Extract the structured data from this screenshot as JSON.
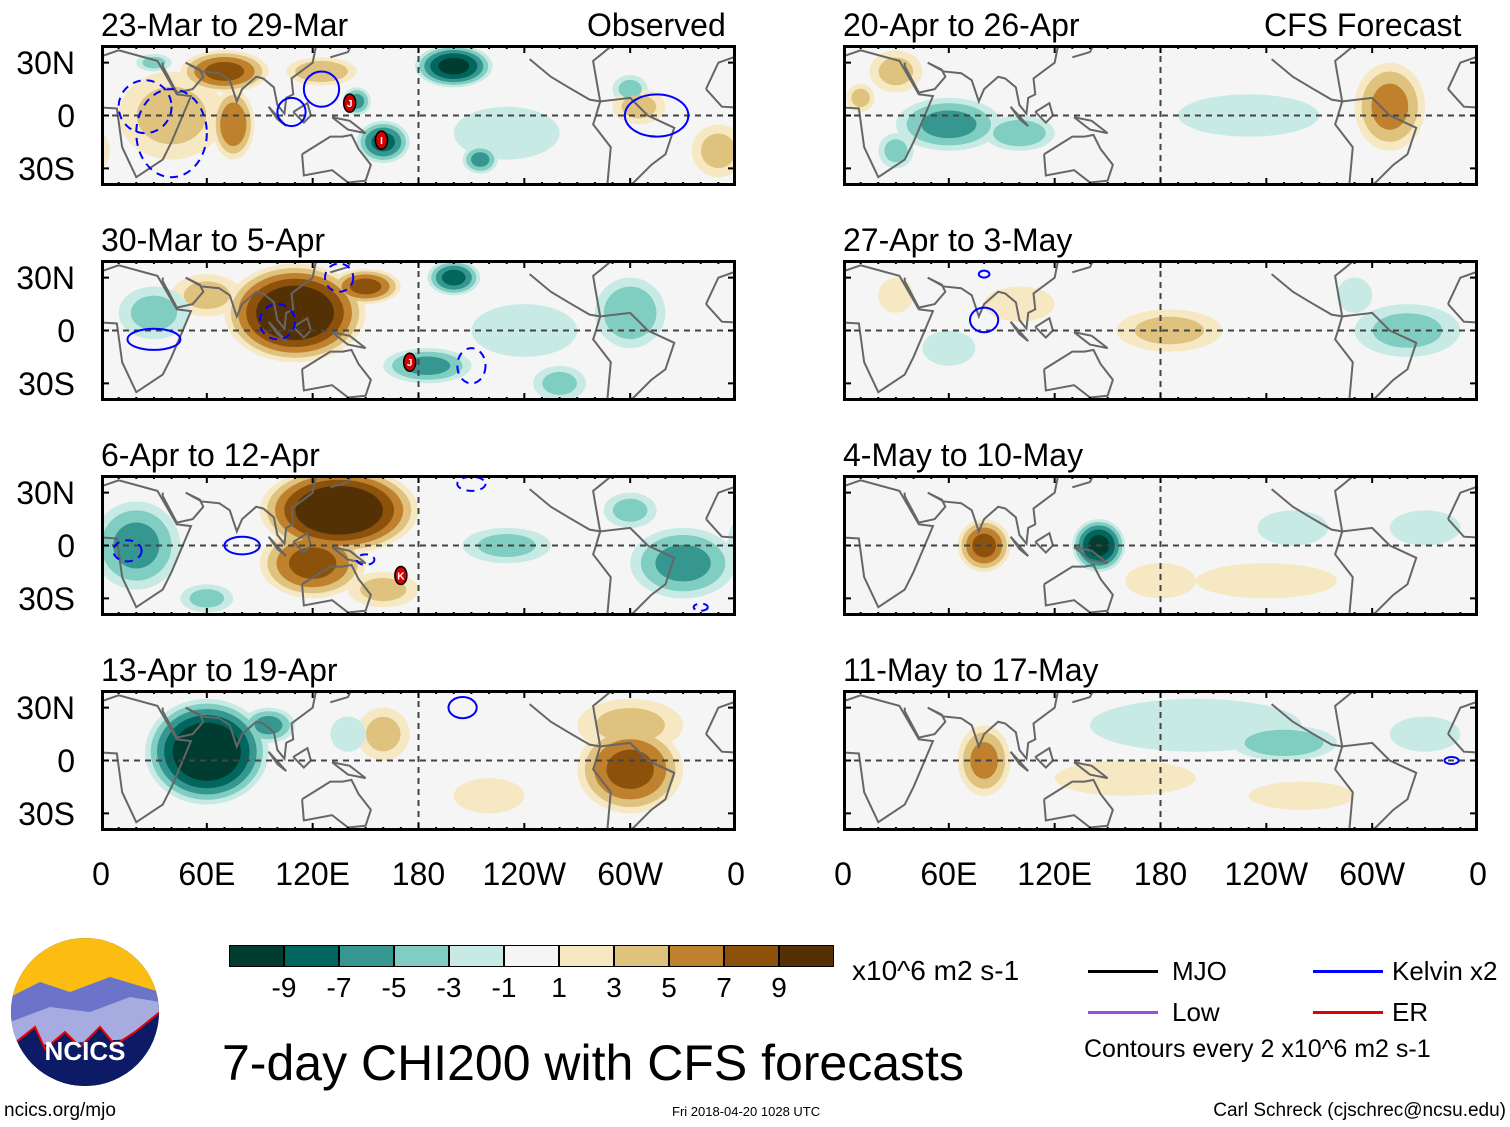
{
  "header": {
    "left_label": "Observed",
    "right_label": "CFS Forecast"
  },
  "lat_labels": [
    "30N",
    "0",
    "30S"
  ],
  "lon_labels": [
    "0",
    "60E",
    "120E",
    "180",
    "120W",
    "60W",
    "0"
  ],
  "colors": {
    "levels": [
      "#003c30",
      "#01665e",
      "#35978f",
      "#80cdc1",
      "#c7eae5",
      "#f5f5f5",
      "#f6e8c3",
      "#dfc27d",
      "#bf812d",
      "#8c510a",
      "#543005"
    ],
    "kelvin": "#0000ff",
    "mjo": "#000000",
    "low": "#9b4fd9",
    "er": "#e00000",
    "coast": "#666666"
  },
  "colorbar": {
    "ticks": [
      "-9",
      "-7",
      "-5",
      "-3",
      "-1",
      "1",
      "3",
      "5",
      "7",
      "9"
    ],
    "units": "x10^6 m2 s-1"
  },
  "legend": {
    "mjo": "MJO",
    "kelvin": "Kelvin x2",
    "low": "Low",
    "er": "ER",
    "contours": "Contours every 2 x10^6 m2 s-1"
  },
  "title": "7-day CHI200 with CFS forecasts",
  "footer": {
    "url": "ncics.org/mjo",
    "timestamp": "Fri 2018-04-20 1028 UTC",
    "author": "Carl Schreck (cjschrec@ncsu.edu)"
  },
  "logo": {
    "text": "NCICS"
  },
  "panels": [
    {
      "title": "23-Mar to 29-Mar",
      "column": "observed",
      "anomalies": [
        [
          40,
          0,
          30,
          25,
          3
        ],
        [
          70,
          25,
          25,
          12,
          7
        ],
        [
          75,
          -5,
          12,
          20,
          6
        ],
        [
          125,
          25,
          20,
          8,
          4
        ],
        [
          30,
          30,
          10,
          5,
          -3
        ],
        [
          230,
          -10,
          30,
          15,
          -2
        ],
        [
          200,
          28,
          22,
          12,
          -9
        ],
        [
          160,
          -15,
          15,
          12,
          -7
        ],
        [
          145,
          8,
          8,
          8,
          -5
        ],
        [
          215,
          -25,
          10,
          8,
          -5
        ],
        [
          300,
          15,
          10,
          8,
          -3
        ],
        [
          305,
          5,
          15,
          10,
          3
        ],
        [
          350,
          -20,
          15,
          15,
          3
        ]
      ],
      "kelvin": [
        [
          108,
          2,
          8,
          8,
          1
        ],
        [
          125,
          15,
          10,
          10,
          1
        ],
        [
          315,
          0,
          18,
          12,
          1
        ],
        [
          40,
          -10,
          20,
          25,
          -1
        ],
        [
          25,
          5,
          15,
          15,
          -1
        ]
      ],
      "storms": [
        {
          "id": "J",
          "lon": 141,
          "lat": 7
        },
        {
          "id": "I",
          "lon": 159,
          "lat": -14
        }
      ]
    },
    {
      "title": "30-Mar to 5-Apr",
      "column": "observed",
      "anomalies": [
        [
          60,
          20,
          20,
          12,
          3
        ],
        [
          110,
          10,
          40,
          28,
          11
        ],
        [
          150,
          25,
          20,
          10,
          7
        ],
        [
          30,
          10,
          20,
          15,
          -3
        ],
        [
          240,
          0,
          30,
          15,
          -2
        ],
        [
          200,
          30,
          15,
          10,
          -7
        ],
        [
          185,
          -20,
          25,
          10,
          -5
        ],
        [
          300,
          10,
          20,
          20,
          -4
        ],
        [
          260,
          -30,
          15,
          10,
          -3
        ]
      ],
      "kelvin": [
        [
          30,
          -5,
          15,
          6,
          1
        ],
        [
          100,
          5,
          10,
          10,
          -1
        ],
        [
          210,
          -20,
          8,
          10,
          -1
        ],
        [
          135,
          30,
          8,
          8,
          -1
        ]
      ],
      "storms": [
        {
          "id": "J",
          "lon": 175,
          "lat": -18
        }
      ]
    },
    {
      "title": "6-Apr to 12-Apr",
      "column": "observed",
      "anomalies": [
        [
          160,
          -25,
          20,
          10,
          3
        ],
        [
          135,
          20,
          45,
          25,
          11
        ],
        [
          120,
          -10,
          30,
          20,
          7
        ],
        [
          20,
          0,
          25,
          25,
          -5
        ],
        [
          330,
          -10,
          30,
          20,
          -5
        ],
        [
          230,
          0,
          25,
          10,
          -3
        ],
        [
          300,
          20,
          15,
          10,
          -3
        ],
        [
          60,
          -30,
          15,
          8,
          -3
        ]
      ],
      "kelvin": [
        [
          80,
          0,
          10,
          5,
          1
        ],
        [
          15,
          -3,
          8,
          6,
          -1
        ],
        [
          210,
          35,
          8,
          4,
          -1
        ],
        [
          150,
          -8,
          5,
          3,
          -1
        ],
        [
          340,
          -35,
          4,
          2,
          -1
        ]
      ],
      "storms": [
        {
          "id": "K",
          "lon": 170,
          "lat": -17
        }
      ]
    },
    {
      "title": "13-Apr to 19-Apr",
      "column": "observed",
      "anomalies": [
        [
          300,
          20,
          30,
          15,
          3
        ],
        [
          160,
          15,
          15,
          15,
          3
        ],
        [
          220,
          -20,
          20,
          10,
          2
        ],
        [
          300,
          -5,
          30,
          25,
          7
        ],
        [
          60,
          5,
          35,
          30,
          -11
        ],
        [
          95,
          20,
          15,
          10,
          -5
        ],
        [
          140,
          15,
          10,
          10,
          -2
        ]
      ],
      "kelvin": [
        [
          205,
          30,
          8,
          6,
          1
        ]
      ],
      "storms": []
    },
    {
      "title": "20-Apr to 26-Apr",
      "column": "forecast",
      "anomalies": [
        [
          230,
          0,
          40,
          12,
          -2
        ],
        [
          60,
          -5,
          30,
          15,
          -5
        ],
        [
          100,
          -10,
          20,
          10,
          -4
        ],
        [
          30,
          -20,
          10,
          10,
          -3
        ],
        [
          310,
          5,
          20,
          25,
          5
        ],
        [
          30,
          25,
          15,
          12,
          3
        ],
        [
          10,
          10,
          8,
          8,
          3
        ]
      ],
      "kelvin": [],
      "storms": []
    },
    {
      "title": "27-Apr to 3-May",
      "column": "forecast",
      "anomalies": [
        [
          185,
          0,
          30,
          12,
          3
        ],
        [
          100,
          15,
          20,
          10,
          2
        ],
        [
          30,
          20,
          10,
          10,
          2
        ],
        [
          320,
          0,
          30,
          15,
          -3
        ],
        [
          60,
          -10,
          15,
          10,
          -2
        ],
        [
          290,
          20,
          10,
          10,
          -2
        ]
      ],
      "kelvin": [
        [
          80,
          6,
          8,
          7,
          1
        ],
        [
          80,
          32,
          3,
          2,
          1
        ]
      ],
      "storms": []
    },
    {
      "title": "4-May to 10-May",
      "column": "forecast",
      "anomalies": [
        [
          240,
          -20,
          40,
          10,
          2
        ],
        [
          180,
          -20,
          20,
          10,
          2
        ],
        [
          80,
          0,
          15,
          15,
          7
        ],
        [
          145,
          0,
          15,
          15,
          -9
        ],
        [
          330,
          10,
          20,
          10,
          -2
        ],
        [
          255,
          10,
          20,
          10,
          -2
        ]
      ],
      "kelvin": [],
      "storms": []
    },
    {
      "title": "11-May to 17-May",
      "column": "forecast",
      "anomalies": [
        [
          160,
          -10,
          40,
          10,
          2
        ],
        [
          260,
          -20,
          30,
          8,
          2
        ],
        [
          80,
          0,
          15,
          20,
          5
        ],
        [
          200,
          20,
          60,
          15,
          -2
        ],
        [
          250,
          10,
          30,
          10,
          -4
        ],
        [
          330,
          15,
          20,
          10,
          -2
        ]
      ],
      "kelvin": [
        [
          345,
          0,
          4,
          2,
          1
        ]
      ],
      "storms": []
    }
  ]
}
